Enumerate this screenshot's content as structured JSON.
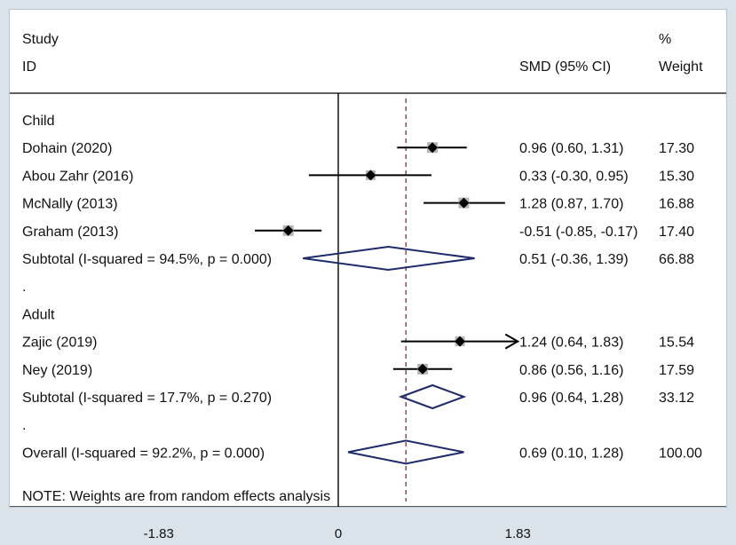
{
  "chart_data": {
    "type": "forest",
    "header": {
      "study_line1": "Study",
      "study_line2": "ID",
      "smd_label": "SMD (95% CI)",
      "weight_line1": "%",
      "weight_line2": "Weight"
    },
    "x_axis": {
      "min": -1.83,
      "max": 1.83,
      "ticks": [
        -1.83,
        0,
        1.83
      ],
      "tick_labels": [
        "-1.83",
        "0",
        "1.83"
      ],
      "null_line": 0,
      "reference_line": 0.69
    },
    "rows": [
      {
        "kind": "group",
        "label": "Child"
      },
      {
        "kind": "study",
        "label": "Dohain  (2020)",
        "est": 0.96,
        "lo": 0.6,
        "hi": 1.31,
        "ci_text": "0.96 (0.60, 1.31)",
        "weight": "17.30",
        "box": 12
      },
      {
        "kind": "study",
        "label": "Abou Zahr (2016)",
        "est": 0.33,
        "lo": -0.3,
        "hi": 0.95,
        "ci_text": "0.33 (-0.30, 0.95)",
        "weight": "15.30",
        "box": 11
      },
      {
        "kind": "study",
        "label": "McNally (2013)",
        "est": 1.28,
        "lo": 0.87,
        "hi": 1.7,
        "ci_text": "1.28 (0.87, 1.70)",
        "weight": "16.88",
        "box": 12
      },
      {
        "kind": "study",
        "label": "Graham  (2013)",
        "est": -0.51,
        "lo": -0.85,
        "hi": -0.17,
        "ci_text": "-0.51 (-0.85, -0.17)",
        "weight": "17.40",
        "box": 12
      },
      {
        "kind": "subtotal",
        "label": "Subtotal  (I-squared = 94.5%, p = 0.000)",
        "est": 0.51,
        "lo": -0.36,
        "hi": 1.39,
        "ci_text": "0.51 (-0.36, 1.39)",
        "weight": "66.88"
      },
      {
        "kind": "spacer",
        "label": "."
      },
      {
        "kind": "group",
        "label": "Adult"
      },
      {
        "kind": "study",
        "label": "Zajic (2019)",
        "est": 1.24,
        "lo": 0.64,
        "hi": 1.83,
        "ci_text": "1.24 (0.64, 1.83)",
        "weight": "15.54",
        "box": 11,
        "arrow": true
      },
      {
        "kind": "study",
        "label": "Ney (2019)",
        "est": 0.86,
        "lo": 0.56,
        "hi": 1.16,
        "ci_text": "0.86 (0.56, 1.16)",
        "weight": "17.59",
        "box": 12
      },
      {
        "kind": "subtotal",
        "label": "Subtotal  (I-squared = 17.7%, p = 0.270)",
        "est": 0.96,
        "lo": 0.64,
        "hi": 1.28,
        "ci_text": "0.96 (0.64, 1.28)",
        "weight": "33.12"
      },
      {
        "kind": "spacer",
        "label": "."
      },
      {
        "kind": "overall",
        "label": "Overall  (I-squared = 92.2%, p = 0.000)",
        "est": 0.69,
        "lo": 0.1,
        "hi": 1.28,
        "ci_text": "0.69 (0.10, 1.28)",
        "weight": "100.00"
      }
    ],
    "note": "NOTE: Weights are from random effects analysis",
    "colors": {
      "diamond": "#1f2a6b",
      "ref_line": "#a8323a",
      "box": "#b5b5b5",
      "point": "#000000",
      "line": "#000000",
      "frame_bg": "#dbe3ea"
    }
  }
}
